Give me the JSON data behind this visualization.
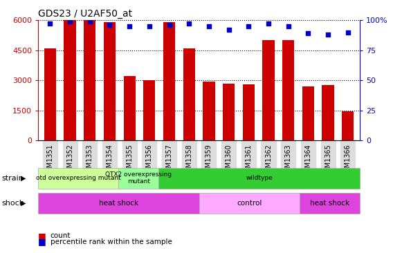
{
  "title": "GDS23 / U2AF50_at",
  "categories": [
    "GSM1351",
    "GSM1352",
    "GSM1353",
    "GSM1354",
    "GSM1355",
    "GSM1356",
    "GSM1357",
    "GSM1358",
    "GSM1359",
    "GSM1360",
    "GSM1361",
    "GSM1362",
    "GSM1363",
    "GSM1364",
    "GSM1365",
    "GSM1366"
  ],
  "bar_values": [
    4600,
    6000,
    6000,
    5900,
    3200,
    3000,
    5900,
    4600,
    2950,
    2850,
    2800,
    5000,
    5000,
    2700,
    2750,
    1450
  ],
  "dot_values": [
    97,
    99,
    99,
    96,
    95,
    95,
    96,
    97,
    95,
    92,
    95,
    97,
    95,
    89,
    88,
    90
  ],
  "bar_color": "#cc0000",
  "dot_color": "#0000cc",
  "ylim_left": [
    0,
    6000
  ],
  "ylim_right": [
    0,
    100
  ],
  "yticks_left": [
    0,
    1500,
    3000,
    4500,
    6000
  ],
  "yticks_right": [
    0,
    25,
    50,
    75,
    100
  ],
  "strain_labels": [
    {
      "label": "otd overexpressing mutant",
      "start": 0,
      "end": 4,
      "color": "#ccff99"
    },
    {
      "label": "OTX2 overexpressing\nmutant",
      "start": 4,
      "end": 6,
      "color": "#99ff99"
    },
    {
      "label": "wildtype",
      "start": 6,
      "end": 16,
      "color": "#33cc33"
    }
  ],
  "shock_labels": [
    {
      "label": "heat shock",
      "start": 0,
      "end": 8,
      "color": "#dd44dd"
    },
    {
      "label": "control",
      "start": 8,
      "end": 13,
      "color": "#ffaaff"
    },
    {
      "label": "heat shock",
      "start": 13,
      "end": 16,
      "color": "#dd44dd"
    }
  ],
  "legend_count_color": "#cc0000",
  "legend_dot_color": "#0000cc",
  "background_color": "#ffffff"
}
